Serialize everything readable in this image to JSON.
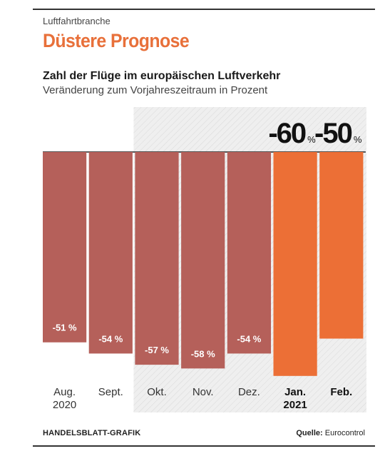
{
  "header": {
    "kicker": "Luftfahrtbranche",
    "headline": "Düstere Prognose"
  },
  "chart_data": {
    "type": "bar",
    "title": "Zahl der Flüge im europäischen Luftverkehr",
    "subtitle": "Veränderung zum Vorjahreszeitraum in Prozent",
    "categories": [
      [
        "Aug.",
        "2020"
      ],
      [
        "Sept."
      ],
      [
        "Okt."
      ],
      [
        "Nov."
      ],
      [
        "Dez."
      ],
      [
        "Jan.",
        "2021"
      ],
      [
        "Feb."
      ]
    ],
    "values": [
      -51,
      -54,
      -57,
      -58,
      -54,
      -60,
      -50
    ],
    "value_labels": [
      "-51 %",
      "-54 %",
      "-57 %",
      "-58 %",
      "-54 %",
      "",
      ""
    ],
    "forecast_labels": [
      {
        "index": 5,
        "number": "-60",
        "unit": "%"
      },
      {
        "index": 6,
        "number": "-50",
        "unit": "%"
      }
    ],
    "forecast_from_index": 5,
    "shaded_from_index": 2,
    "ylim": [
      -60,
      0
    ],
    "colors": {
      "actual": "#b5605a",
      "forecast": "#ec6f36",
      "shade": "#efefef",
      "accent": "#e8703a"
    }
  },
  "footer": {
    "credit": "HANDELSBLATT-GRAFIK",
    "source_label": "Quelle:",
    "source_value": "Eurocontrol"
  }
}
